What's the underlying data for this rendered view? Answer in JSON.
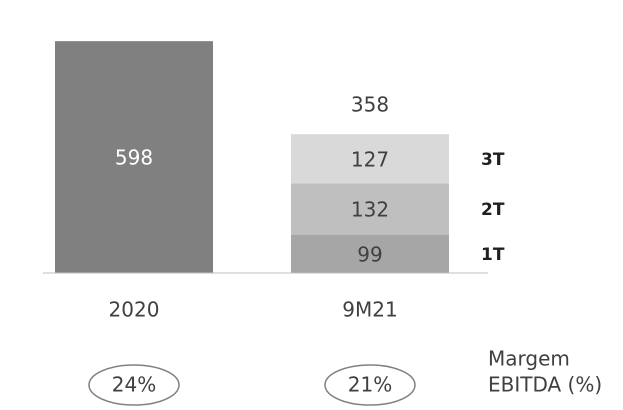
{
  "chart_data": {
    "type": "stacked_bar",
    "categories": [
      "2020",
      "9M21"
    ],
    "series": [
      {
        "color": "#808080",
        "label_color": "#ffffff",
        "values": [
          598,
          null
        ]
      },
      {
        "name": "1T",
        "color": "#a6a6a6",
        "label_color": "#404040",
        "values": [
          null,
          99
        ]
      },
      {
        "name": "2T",
        "color": "#bfbfbf",
        "label_color": "#404040",
        "values": [
          null,
          132
        ]
      },
      {
        "name": "3T",
        "color": "#d9d9d9",
        "label_color": "#404040",
        "values": [
          null,
          127
        ]
      }
    ],
    "totals": [
      null,
      358
    ],
    "ylim": [
      0,
      650
    ],
    "margins": [
      24,
      21
    ],
    "margin_value_labels": [
      "24%",
      "21%"
    ],
    "margin_label": [
      "Margem",
      "EBITDA (%)"
    ]
  }
}
